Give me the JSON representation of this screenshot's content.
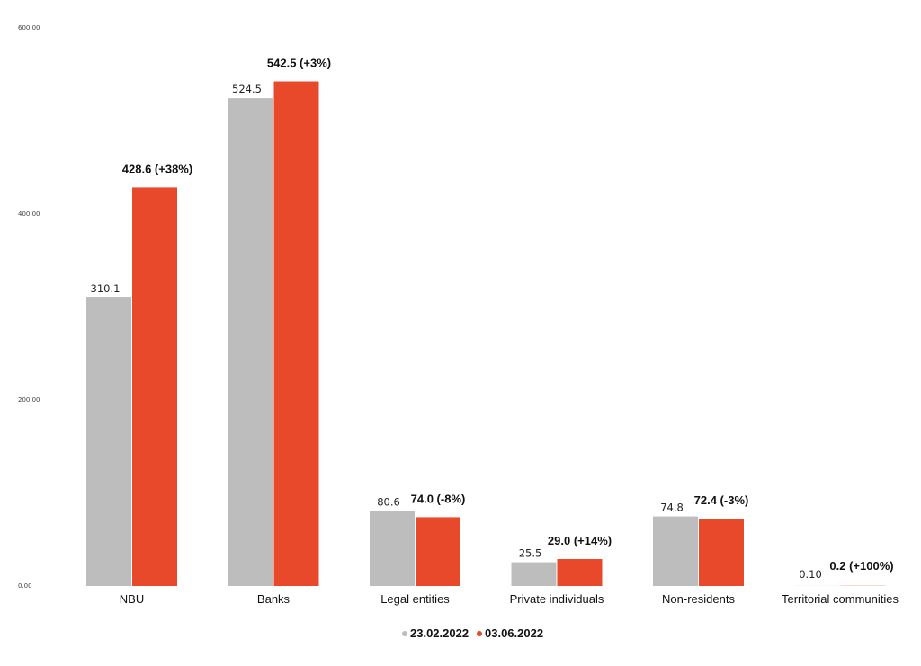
{
  "chart_data": {
    "type": "bar",
    "title": "",
    "xlabel": "",
    "ylabel": "",
    "ylim": [
      0,
      600
    ],
    "yticks": [
      "0.00",
      "200.00",
      "400.00",
      "600.00"
    ],
    "grid": false,
    "legend_position": "bottom-center",
    "categories": [
      "NBU",
      "Banks",
      "Legal entities",
      "Private individuals",
      "Non-residents",
      "Territorial communities"
    ],
    "series": [
      {
        "name": "23.02.2022",
        "color": "#bdbdbd",
        "values": [
          310.1,
          524.5,
          80.6,
          25.5,
          74.8,
          0.1
        ],
        "labels": [
          "310.1",
          "524.5",
          "80.6",
          "25.5",
          "74.8",
          "0.10"
        ]
      },
      {
        "name": "03.06.2022",
        "color": "#e8492a",
        "values": [
          428.6,
          542.5,
          74.0,
          29.0,
          72.4,
          0.2
        ],
        "labels": [
          "428.6 (+38%)",
          "542.5 (+3%)",
          "74.0 (-8%)",
          "29.0 (+14%)",
          "72.4 (-3%)",
          "0.2 (+100%)"
        ]
      }
    ]
  }
}
